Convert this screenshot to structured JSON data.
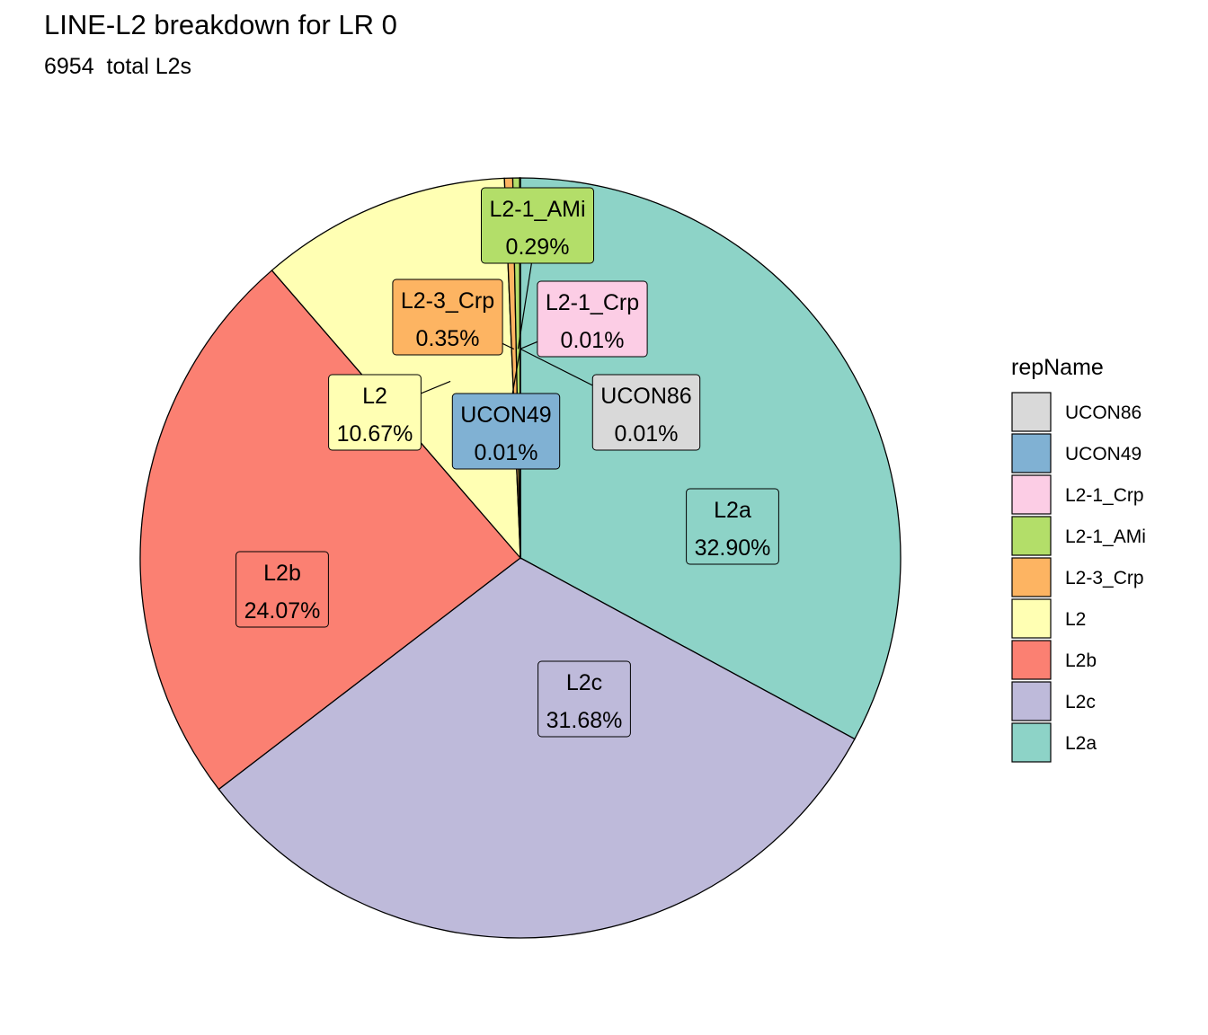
{
  "title": "LINE-L2 breakdown for LR 0",
  "subtitle": "6954  total L2s",
  "chart_data": {
    "type": "pie",
    "title": "LINE-L2 breakdown for LR 0",
    "subtitle": "6954  total L2s",
    "total": 6954,
    "slices": [
      {
        "name": "L2a",
        "value": 32.9,
        "label": "32.90%",
        "color": "#8DD3C7"
      },
      {
        "name": "L2c",
        "value": 31.68,
        "label": "31.68%",
        "color": "#BEBADA"
      },
      {
        "name": "L2b",
        "value": 24.07,
        "label": "24.07%",
        "color": "#FB8072"
      },
      {
        "name": "L2",
        "value": 10.67,
        "label": "10.67%",
        "color": "#FFFFB3"
      },
      {
        "name": "L2-3_Crp",
        "value": 0.35,
        "label": "0.35%",
        "color": "#FDB462"
      },
      {
        "name": "L2-1_AMi",
        "value": 0.29,
        "label": "0.29%",
        "color": "#B3DE69"
      },
      {
        "name": "L2-1_Crp",
        "value": 0.01,
        "label": "0.01%",
        "color": "#FCCDE5"
      },
      {
        "name": "UCON49",
        "value": 0.01,
        "label": "0.01%",
        "color": "#80B1D3"
      },
      {
        "name": "UCON86",
        "value": 0.01,
        "label": "0.01%",
        "color": "#D9D9D9"
      }
    ],
    "legend": {
      "title": "repName",
      "position": "right",
      "items": [
        "UCON86",
        "UCON49",
        "L2-1_Crp",
        "L2-1_AMi",
        "L2-3_Crp",
        "L2",
        "L2b",
        "L2c",
        "L2a"
      ]
    }
  }
}
